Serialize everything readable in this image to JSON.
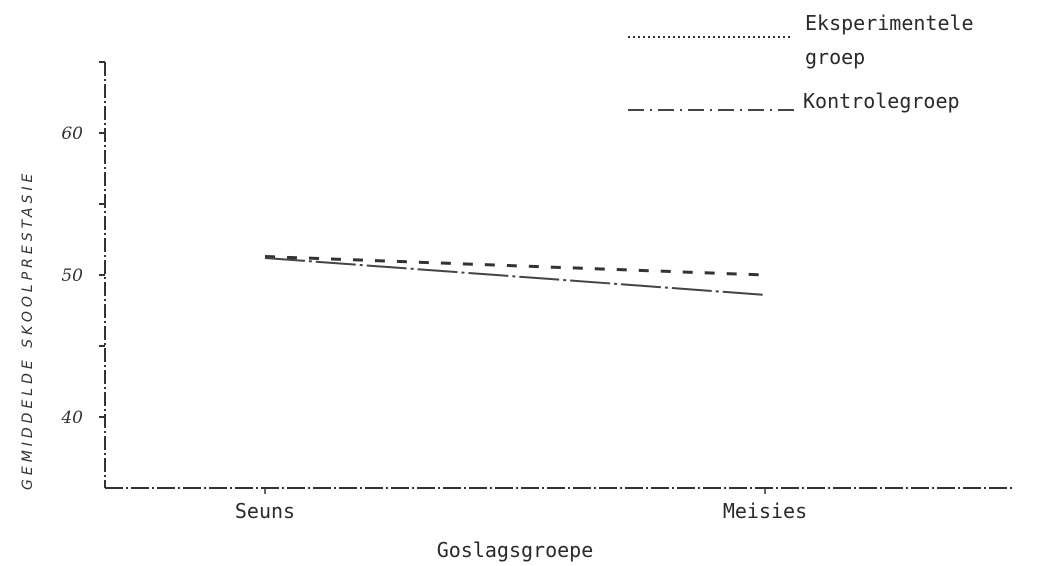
{
  "chart_data": {
    "type": "line",
    "title": "",
    "xlabel": "Goslagsgroepe",
    "ylabel": "GEMIDDELDE SKOOLPRESTASIE",
    "categories": [
      "Seuns",
      "Meisies"
    ],
    "ylim": [
      35,
      65
    ],
    "yticks": [
      40,
      45,
      50,
      55,
      60,
      65
    ],
    "ytick_labels": [
      "40",
      "",
      "50",
      "",
      "60",
      ""
    ],
    "grid": false,
    "legend_position": "top-right",
    "series": [
      {
        "name": "Eksperimentele groep",
        "values": [
          51.3,
          50.0
        ],
        "style": "dashed",
        "color": "#333333"
      },
      {
        "name": "Kontrolegroep",
        "values": [
          51.2,
          48.6
        ],
        "style": "dash-dot",
        "color": "#444444"
      }
    ]
  },
  "legend": {
    "experimental_line1": "Eksperimentele",
    "experimental_line2": "groep",
    "control": "Kontrolegroep"
  }
}
